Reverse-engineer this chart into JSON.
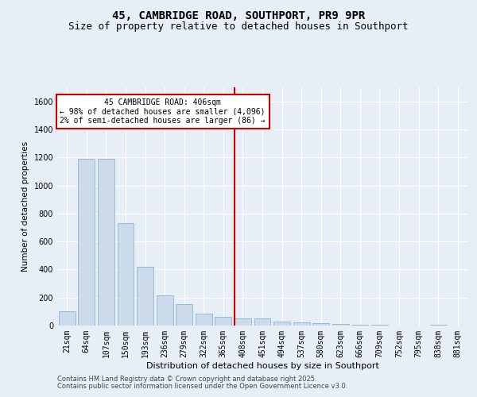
{
  "title": "45, CAMBRIDGE ROAD, SOUTHPORT, PR9 9PR",
  "subtitle": "Size of property relative to detached houses in Southport",
  "xlabel": "Distribution of detached houses by size in Southport",
  "ylabel": "Number of detached properties",
  "categories": [
    "21sqm",
    "64sqm",
    "107sqm",
    "150sqm",
    "193sqm",
    "236sqm",
    "279sqm",
    "322sqm",
    "365sqm",
    "408sqm",
    "451sqm",
    "494sqm",
    "537sqm",
    "580sqm",
    "623sqm",
    "666sqm",
    "709sqm",
    "752sqm",
    "795sqm",
    "838sqm",
    "881sqm"
  ],
  "values": [
    100,
    1190,
    1190,
    730,
    420,
    215,
    155,
    85,
    60,
    50,
    50,
    30,
    25,
    18,
    12,
    8,
    5,
    2,
    2,
    5,
    2
  ],
  "bar_color": "#ccdaeb",
  "bar_edge_color": "#7aaac8",
  "highlight_line_color": "#cc0000",
  "annotation_text": "45 CAMBRIDGE ROAD: 406sqm\n← 98% of detached houses are smaller (4,096)\n2% of semi-detached houses are larger (86) →",
  "annotation_box_facecolor": "#ffffff",
  "annotation_box_edgecolor": "#cc0000",
  "ylim": [
    0,
    1700
  ],
  "yticks": [
    0,
    200,
    400,
    600,
    800,
    1000,
    1200,
    1400,
    1600
  ],
  "background_color": "#e8eef5",
  "grid_color": "#ffffff",
  "footer_line1": "Contains HM Land Registry data © Crown copyright and database right 2025.",
  "footer_line2": "Contains public sector information licensed under the Open Government Licence v3.0.",
  "title_fontsize": 10,
  "subtitle_fontsize": 9,
  "ylabel_fontsize": 7.5,
  "xlabel_fontsize": 8,
  "tick_fontsize": 7,
  "annotation_fontsize": 7,
  "footer_fontsize": 6
}
